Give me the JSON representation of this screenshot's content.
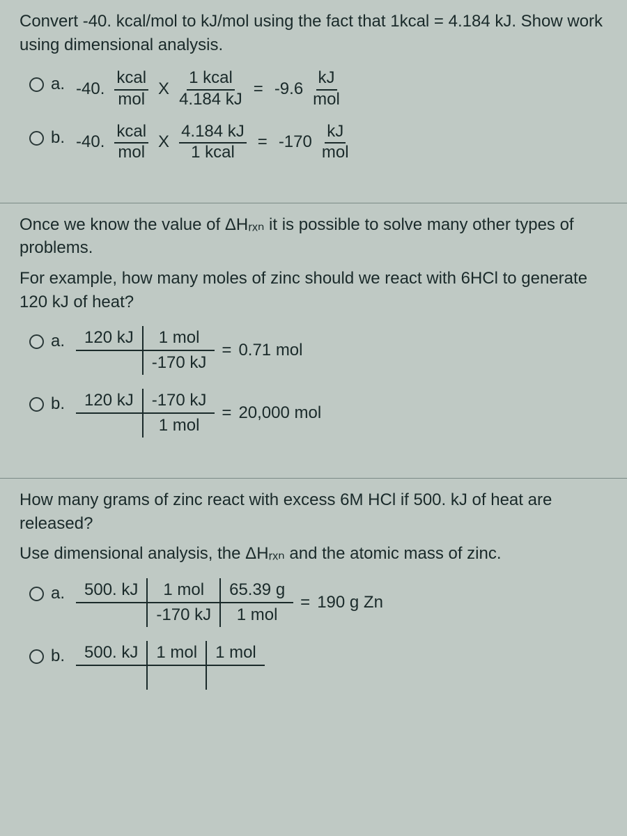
{
  "q1": {
    "prompt": "Convert -40. kcal/mol to kJ/mol using the fact that 1kcal = 4.184 kJ.  Show work using dimensional analysis.",
    "a": {
      "letter": "a.",
      "coef": "-40.",
      "n1": "kcal",
      "d1": "mol",
      "x": "X",
      "n2": "1 kcal",
      "d2": "4.184 kJ",
      "eq": "=",
      "res1": "-9.6",
      "rn": "kJ",
      "rd": "mol"
    },
    "b": {
      "letter": "b.",
      "coef": "-40.",
      "n1": "kcal",
      "d1": "mol",
      "x": "X",
      "n2": "4.184 kJ",
      "d2": "1 kcal",
      "eq": "=",
      "res1": "-170",
      "rn": "kJ",
      "rd": "mol"
    }
  },
  "q2": {
    "intro": "Once we know the value of ΔHᵣₓₙ it is possible to solve many other types of problems.",
    "prompt": "For example,  how many moles of zinc should we react with 6HCl to generate 120 kJ of heat?",
    "a": {
      "letter": "a.",
      "c1t": "120 kJ",
      "c1b": "",
      "c2t": "1 mol",
      "c2b": "-170 kJ",
      "eq": "=",
      "res": "0.71 mol"
    },
    "b": {
      "letter": "b.",
      "c1t": "120 kJ",
      "c1b": "",
      "c2t": "-170 kJ",
      "c2b": "1 mol",
      "eq": "=",
      "res": "20,000 mol"
    }
  },
  "q3": {
    "prompt": "How many grams of zinc react with excess 6M HCl if 500. kJ of heat are released?",
    "sub": "Use dimensional analysis, the ΔHᵣₓₙ and the atomic mass of zinc.",
    "a": {
      "letter": "a.",
      "c1t": "500. kJ",
      "c1b": "",
      "c2t": "1 mol",
      "c2b": "-170 kJ",
      "c3t": "65.39 g",
      "c3b": "1 mol",
      "eq": "=",
      "res": "190 g Zn"
    },
    "b": {
      "letter": "b.",
      "c1t": "500. kJ",
      "c1b": "",
      "c2t": "1 mol",
      "c2b": "",
      "c3t": "1 mol",
      "c3b": ""
    }
  }
}
